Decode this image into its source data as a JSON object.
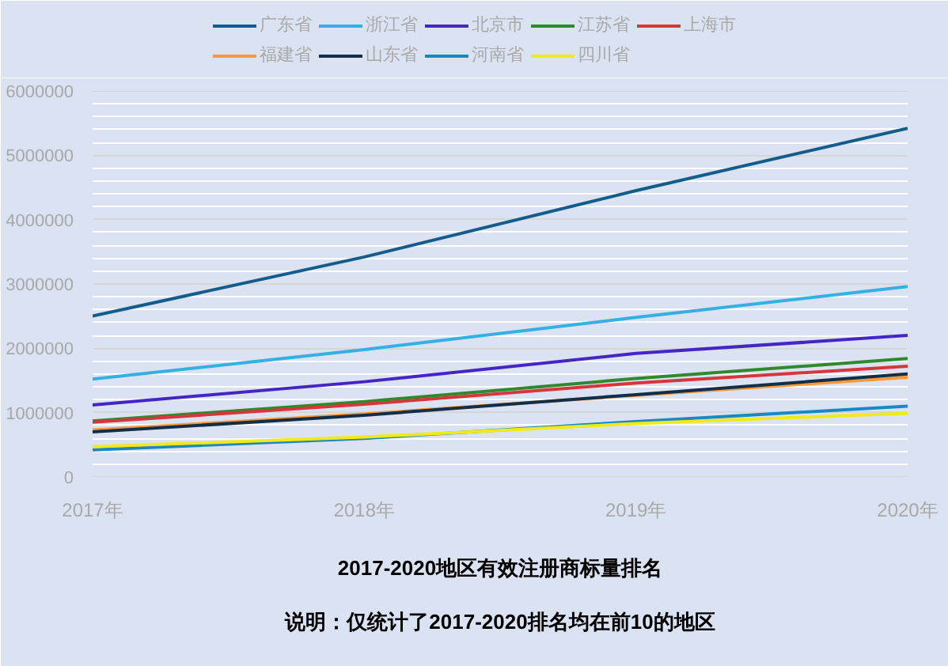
{
  "chart_data": {
    "type": "line",
    "title": "2017-2020地区有效注册商标量排名",
    "subtitle": "说明：仅统计了2017-2020排名均在前10的地区",
    "categories": [
      "2017年",
      "2018年",
      "2019年",
      "2020年"
    ],
    "ylim": [
      0,
      6000000
    ],
    "yticks": [
      0,
      {
        "value": 200000,
        "label": null
      },
      {
        "value": 400000,
        "label": null
      },
      {
        "value": 600000,
        "label": null
      },
      {
        "value": 800000,
        "label": null
      },
      1000000,
      {
        "value": 1200000,
        "label": null
      },
      {
        "value": 1400000,
        "label": null
      },
      {
        "value": 1600000,
        "label": null
      },
      {
        "value": 1800000,
        "label": null
      },
      2000000,
      {
        "value": 2200000,
        "label": null
      },
      {
        "value": 2400000,
        "label": null
      },
      {
        "value": 2600000,
        "label": null
      },
      {
        "value": 2800000,
        "label": null
      },
      3000000,
      {
        "value": 3200000,
        "label": null
      },
      {
        "value": 3400000,
        "label": null
      },
      {
        "value": 3600000,
        "label": null
      },
      {
        "value": 3800000,
        "label": null
      },
      4000000,
      {
        "value": 4200000,
        "label": null
      },
      {
        "value": 4400000,
        "label": null
      },
      {
        "value": 4600000,
        "label": null
      },
      {
        "value": 4800000,
        "label": null
      },
      5000000,
      {
        "value": 5200000,
        "label": null
      },
      {
        "value": 5400000,
        "label": null
      },
      {
        "value": 5600000,
        "label": null
      },
      {
        "value": 5800000,
        "label": null
      },
      6000000
    ],
    "grid": "y",
    "legend": "top",
    "marker": "none",
    "line_style": "solid",
    "series": [
      {
        "name": "广东省",
        "color": "#145d8a",
        "values": [
          2500000,
          3420000,
          4450000,
          5420000
        ]
      },
      {
        "name": "浙江省",
        "color": "#33b0e4",
        "values": [
          1520000,
          1980000,
          2480000,
          2960000
        ]
      },
      {
        "name": "北京市",
        "color": "#4526c4",
        "values": [
          1120000,
          1480000,
          1920000,
          2200000
        ]
      },
      {
        "name": "江苏省",
        "color": "#2e8a2a",
        "values": [
          870000,
          1170000,
          1530000,
          1840000
        ]
      },
      {
        "name": "上海市",
        "color": "#d6363c",
        "values": [
          850000,
          1130000,
          1460000,
          1720000
        ]
      },
      {
        "name": "福建省",
        "color": "#f7993c",
        "values": [
          730000,
          980000,
          1270000,
          1550000
        ]
      },
      {
        "name": "山东省",
        "color": "#132f48",
        "values": [
          700000,
          960000,
          1280000,
          1600000
        ]
      },
      {
        "name": "河南省",
        "color": "#1a88c2",
        "values": [
          420000,
          600000,
          860000,
          1100000
        ]
      },
      {
        "name": "四川省",
        "color": "#f2ea16",
        "values": [
          470000,
          620000,
          830000,
          990000
        ]
      }
    ]
  }
}
